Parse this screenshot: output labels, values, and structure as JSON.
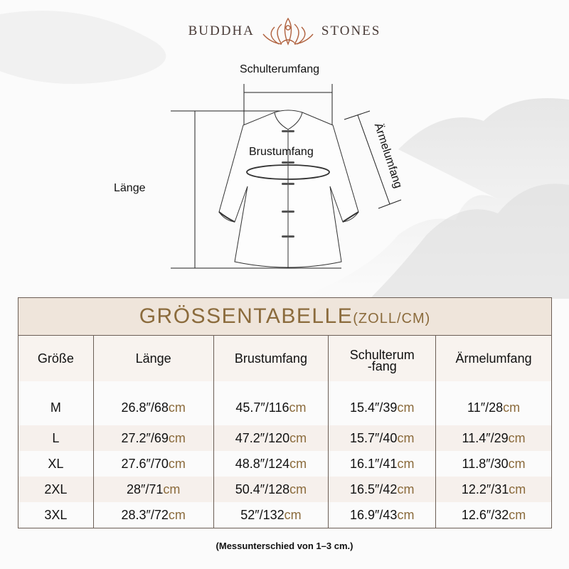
{
  "brand": {
    "left": "BUDDHA",
    "right": "STONES"
  },
  "diagram": {
    "shoulder": "Schulterumfang",
    "chest": "Brustumfang",
    "length": "Länge",
    "sleeve": "Ärmelumfang"
  },
  "table": {
    "title": "GRÖSSENTABELLE",
    "unit": "(ZOLL/CM)",
    "headers": [
      "Größe",
      "Länge",
      "Brustumfang",
      "Schulterum",
      "-fang",
      "Ärmelumfang"
    ],
    "unit_suffix": "cm",
    "rows": [
      {
        "size": "M",
        "c": [
          "26.8″/68",
          "45.7″/116",
          "15.4″/39",
          "11″/28"
        ]
      },
      {
        "size": "L",
        "c": [
          "27.2″/69",
          "47.2″/120",
          "15.7″/40",
          "11.4″/29"
        ]
      },
      {
        "size": "XL",
        "c": [
          "27.6″/70",
          "48.8″/124",
          "16.1″/41",
          "11.8″/30"
        ]
      },
      {
        "size": "2XL",
        "c": [
          "28″/71",
          "50.4″/128",
          "16.5″/42",
          "12.2″/31"
        ]
      },
      {
        "size": "3XL",
        "c": [
          "28.3″/72",
          "52″/132",
          "16.9″/43",
          "12.6″/32"
        ]
      }
    ]
  },
  "note": "(Messunterschied von 1–3 cm.)",
  "colors": {
    "accent": "#8b6b3c",
    "header_bg": "#efe5db",
    "logo": "#b0623f"
  }
}
